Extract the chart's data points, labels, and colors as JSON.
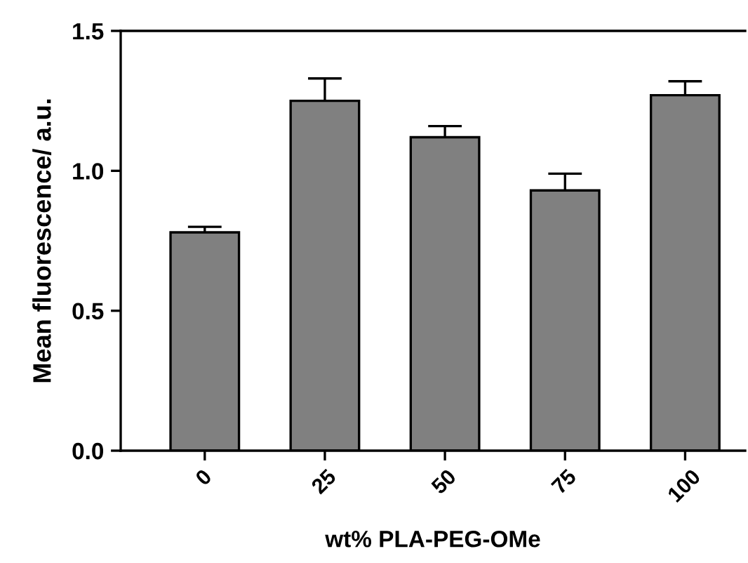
{
  "chart_data": {
    "type": "bar",
    "xlabel": "wt% PLA-PEG-OMe",
    "ylabel": "Mean fluorescence/ a.u.",
    "categories": [
      "0",
      "25",
      "50",
      "75",
      "100"
    ],
    "values": [
      0.78,
      1.25,
      1.12,
      0.93,
      1.27
    ],
    "errors": [
      0.02,
      0.08,
      0.04,
      0.06,
      0.05
    ],
    "color": "#808080",
    "ylim": [
      0,
      1.5
    ],
    "yticks": [
      {
        "value": 0,
        "label": "0.0"
      },
      {
        "value": 0.5,
        "label": "0.5"
      },
      {
        "value": 1.0,
        "label": "1.0"
      },
      {
        "value": 1.5,
        "label": "1.5"
      }
    ],
    "grid": false
  }
}
